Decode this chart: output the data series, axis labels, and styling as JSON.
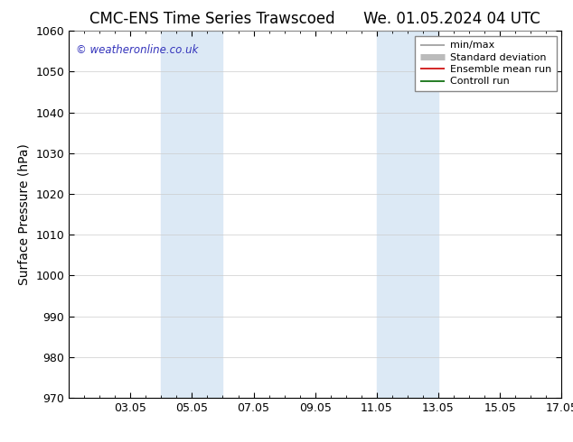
{
  "title_left": "CMC-ENS Time Series Trawscoed",
  "title_right": "We. 01.05.2024 04 UTC",
  "ylabel": "Surface Pressure (hPa)",
  "ylim": [
    970,
    1060
  ],
  "yticks": [
    970,
    980,
    990,
    1000,
    1010,
    1020,
    1030,
    1040,
    1050,
    1060
  ],
  "xlim": [
    1.0,
    17.0
  ],
  "xtick_positions": [
    3,
    5,
    7,
    9,
    11,
    13,
    15,
    17
  ],
  "xtick_labels": [
    "03.05",
    "05.05",
    "07.05",
    "09.05",
    "11.05",
    "13.05",
    "15.05",
    "17.05"
  ],
  "shaded_bands": [
    {
      "x_start": 4.0,
      "x_end": 6.0,
      "color": "#dce9f5"
    },
    {
      "x_start": 11.0,
      "x_end": 13.0,
      "color": "#dce9f5"
    }
  ],
  "watermark": "© weatheronline.co.uk",
  "watermark_color": "#3333bb",
  "legend_items": [
    {
      "label": "min/max",
      "color": "#999999",
      "lw": 1.2
    },
    {
      "label": "Standard deviation",
      "color": "#bbbbbb",
      "lw": 5
    },
    {
      "label": "Ensemble mean run",
      "color": "#cc0000",
      "lw": 1.2
    },
    {
      "label": "Controll run",
      "color": "#006600",
      "lw": 1.2
    }
  ],
  "bg_color": "#ffffff",
  "grid_color": "#cccccc",
  "title_fontsize": 12,
  "axis_label_fontsize": 10,
  "tick_fontsize": 9,
  "legend_fontsize": 8
}
